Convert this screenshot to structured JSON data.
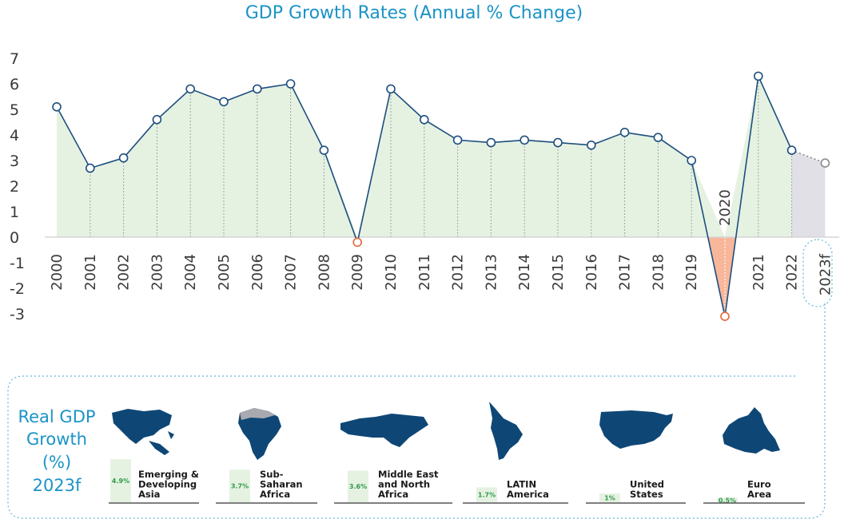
{
  "chart_data": {
    "type": "line",
    "title": "GDP Growth Rates (Annual % Change)",
    "x": [
      "2000",
      "2001",
      "2002",
      "2003",
      "2004",
      "2005",
      "2006",
      "2007",
      "2008",
      "2009",
      "2010",
      "2011",
      "2012",
      "2013",
      "2014",
      "2015",
      "2016",
      "2017",
      "2018",
      "2019",
      "2020",
      "2021",
      "2022",
      "2023f"
    ],
    "values": [
      5.1,
      2.7,
      3.1,
      4.6,
      5.8,
      5.3,
      5.8,
      6.0,
      3.4,
      -0.2,
      5.8,
      4.6,
      3.8,
      3.7,
      3.8,
      3.7,
      3.6,
      4.1,
      3.9,
      3.0,
      -3.1,
      6.3,
      3.4,
      2.9
    ],
    "yticks": [
      "7",
      "6",
      "5",
      "4",
      "3",
      "2",
      "1",
      "0",
      "-1",
      "-2",
      "-3"
    ],
    "ylim": [
      -3,
      7
    ],
    "highlight_label": "2020",
    "colors": {
      "line": "#1d4e7e",
      "fill_positive": "#e5f2e2",
      "fill_negative": "#f8b79a",
      "fill_forecast": "#e1e0e7",
      "marker_negative": "#e2683c",
      "forecast_line": "#8a8a8a",
      "accent": "#1b93c7"
    }
  },
  "regional_panel": {
    "title_lines": [
      "Real GDP",
      "Growth",
      "(%)",
      "2023f"
    ],
    "regions": [
      {
        "name_lines": [
          "Emerging &",
          "Developing",
          "Asia"
        ],
        "value": 4.9,
        "value_label": "4.9%"
      },
      {
        "name_lines": [
          "Sub-",
          "Saharan",
          "Africa"
        ],
        "value": 3.7,
        "value_label": "3.7%"
      },
      {
        "name_lines": [
          "Middle East",
          "and North",
          "Africa"
        ],
        "value": 3.6,
        "value_label": "3.6%"
      },
      {
        "name_lines": [
          "LATIN",
          "America"
        ],
        "value": 1.7,
        "value_label": "1.7%"
      },
      {
        "name_lines": [
          "United",
          "States"
        ],
        "value": 1.0,
        "value_label": "1%"
      },
      {
        "name_lines": [
          "Euro",
          "Area"
        ],
        "value": 0.5,
        "value_label": "0.5%"
      }
    ],
    "map_color": "#0e4776"
  }
}
